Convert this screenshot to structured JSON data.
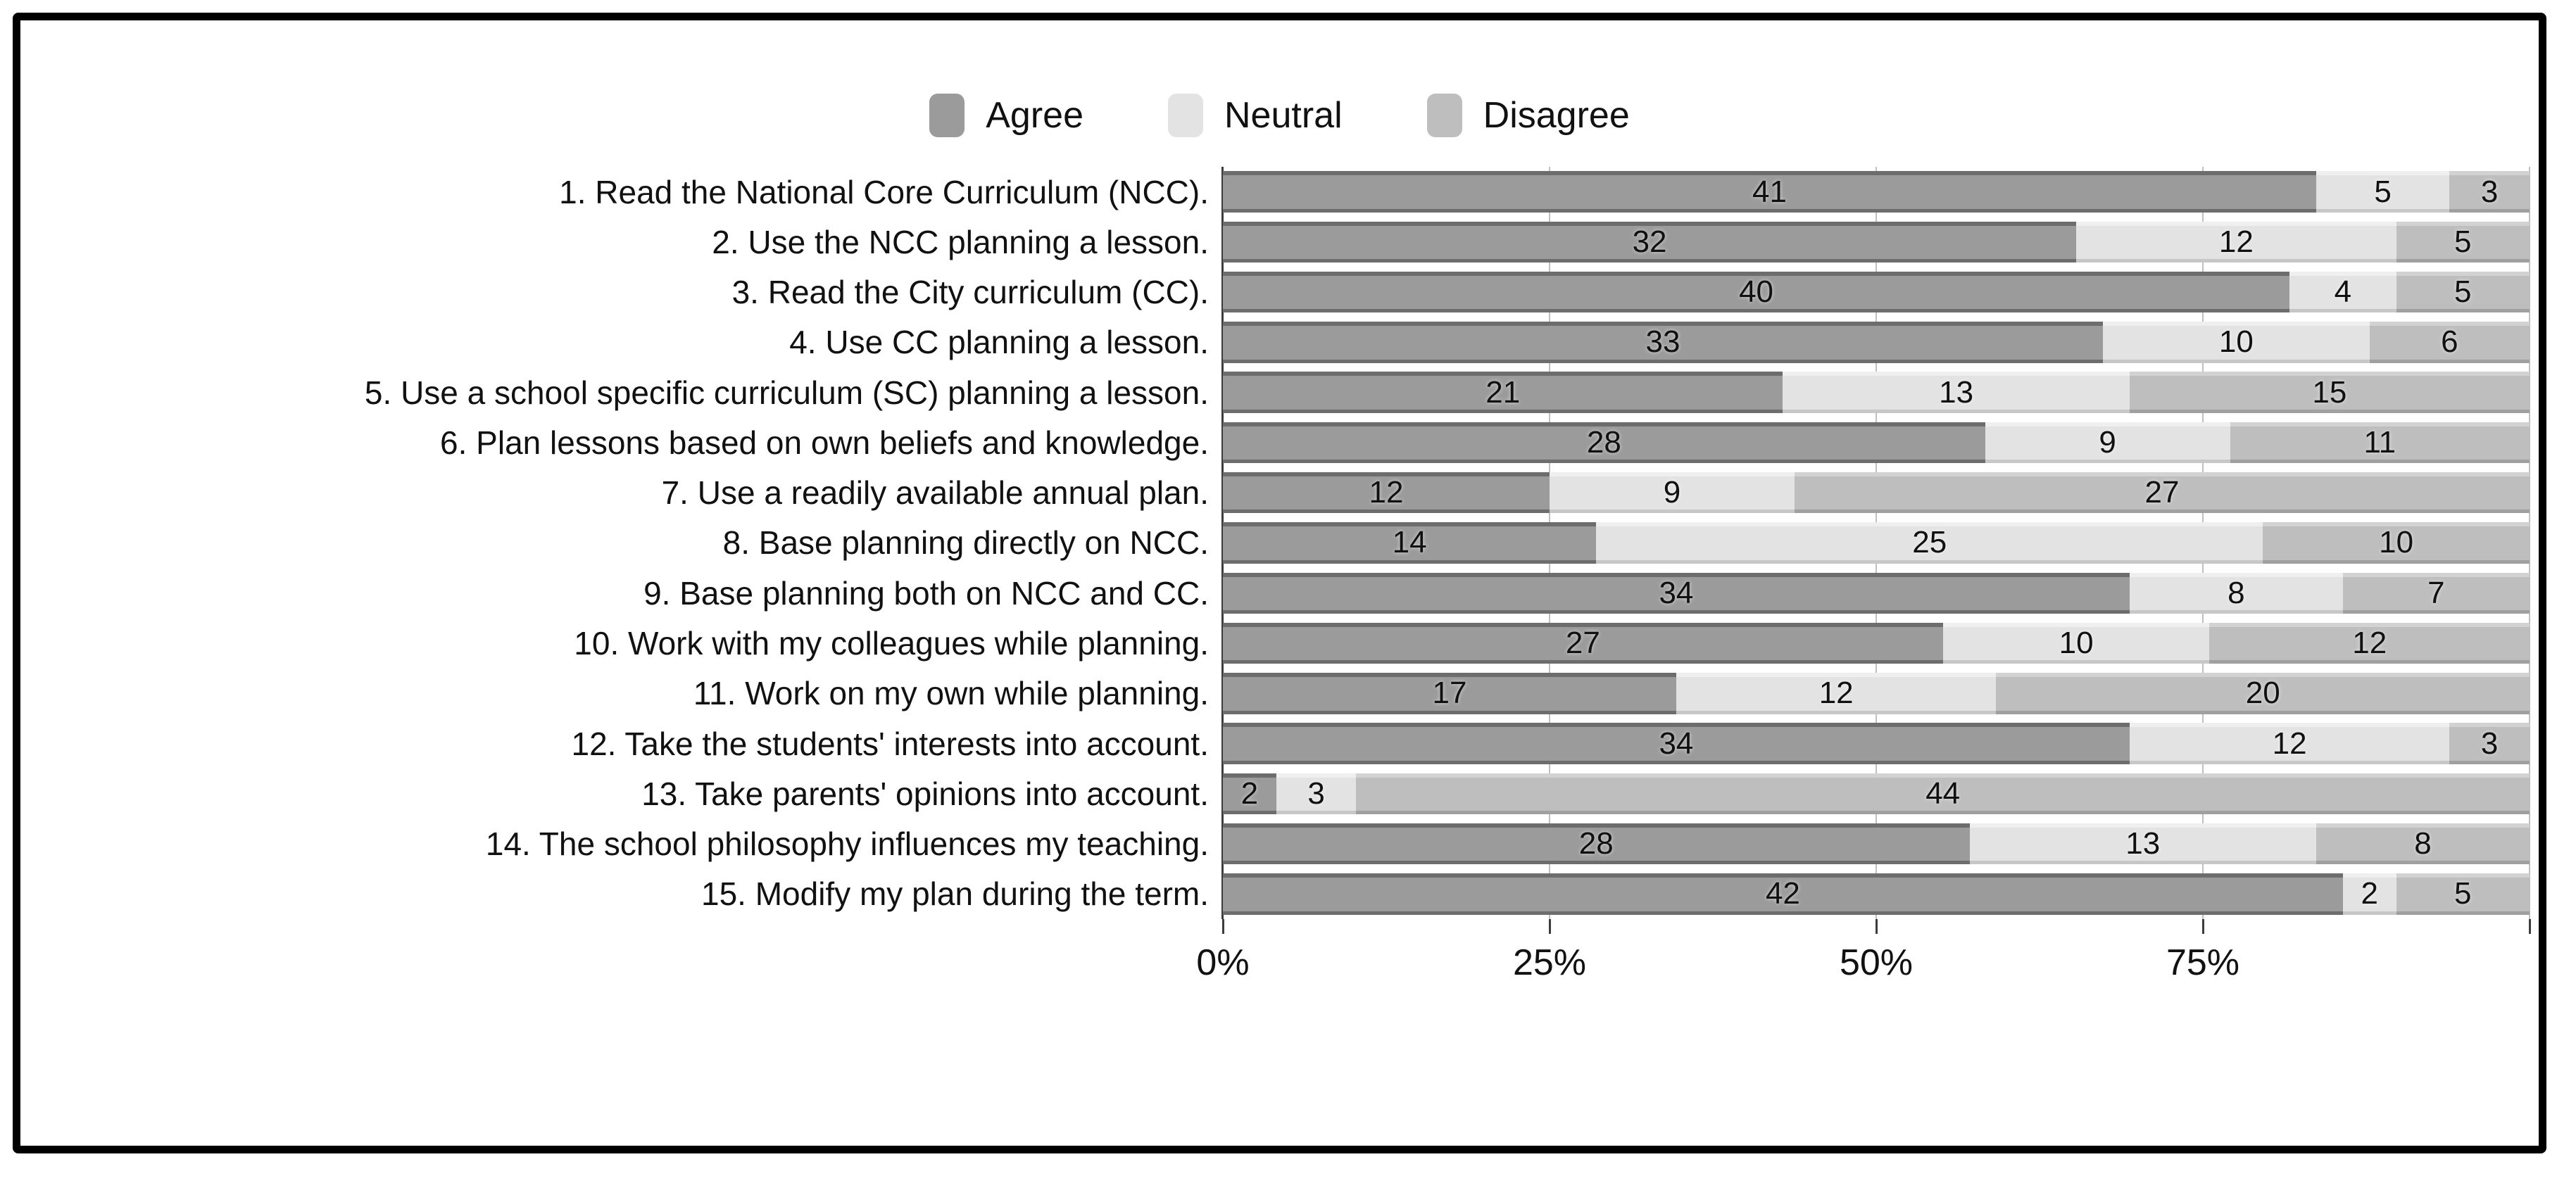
{
  "legend": [
    {
      "key": "agree",
      "label": "Agree"
    },
    {
      "key": "neutral",
      "label": "Neutral"
    },
    {
      "key": "disagree",
      "label": "Disagree"
    }
  ],
  "colors": {
    "agree": {
      "body": "#9b9b9b",
      "top": "#6d6d6d",
      "bottom": "#6d6d6d"
    },
    "neutral": {
      "body": "#e3e3e3",
      "top": "#efefef",
      "bottom": "#c7c7c7"
    },
    "disagree": {
      "body": "#bebebe",
      "top": "#d2d2d2",
      "bottom": "#a0a0a0"
    },
    "gridline": "#bfbfbf",
    "axis": "#3c3c3c",
    "frame_border": "#000000"
  },
  "chart_data": {
    "type": "bar",
    "orientation": "horizontal",
    "stacked": true,
    "normalized_to_100_percent": true,
    "title": "",
    "xlabel": "",
    "ylabel": "",
    "xlim_percent": [
      0,
      100
    ],
    "grid": true,
    "legend_position": "top-center",
    "categories": [
      "1. Read the National Core Curriculum (NCC).",
      "2. Use the NCC planning a lesson.",
      "3. Read the City curriculum (CC).",
      "4. Use CC planning a lesson.",
      "5. Use a school specific curriculum (SC) planning a lesson.",
      "6. Plan lessons based on own beliefs and knowledge.",
      "7. Use a readily available annual plan.",
      "8. Base planning directly on NCC.",
      "9. Base planning both on NCC and CC.",
      "10. Work with my colleagues while planning.",
      "11. Work on my own while planning.",
      "12. Take the students' interests into account.",
      "13. Take parents' opinions into account.",
      "14. The school philosophy influences my teaching.",
      "15. Modify my plan during the term."
    ],
    "series": [
      {
        "key": "agree",
        "name": "Agree",
        "values": [
          41,
          32,
          40,
          33,
          21,
          28,
          12,
          14,
          34,
          27,
          17,
          34,
          2,
          28,
          42
        ]
      },
      {
        "key": "neutral",
        "name": "Neutral",
        "values": [
          5,
          12,
          4,
          10,
          13,
          9,
          9,
          25,
          8,
          10,
          12,
          12,
          3,
          13,
          2
        ]
      },
      {
        "key": "disagree",
        "name": "Disagree",
        "values": [
          3,
          5,
          5,
          6,
          15,
          11,
          27,
          10,
          7,
          12,
          20,
          3,
          44,
          8,
          5
        ]
      }
    ],
    "x_ticks": [
      {
        "label": "0%",
        "percent": 0
      },
      {
        "label": "25%",
        "percent": 25
      },
      {
        "label": "50%",
        "percent": 50
      },
      {
        "label": "75%",
        "percent": 75
      }
    ],
    "tick_marks_percent": [
      0,
      25,
      50,
      75,
      100
    ],
    "gridlines_percent": [
      25,
      50,
      75,
      100
    ]
  }
}
